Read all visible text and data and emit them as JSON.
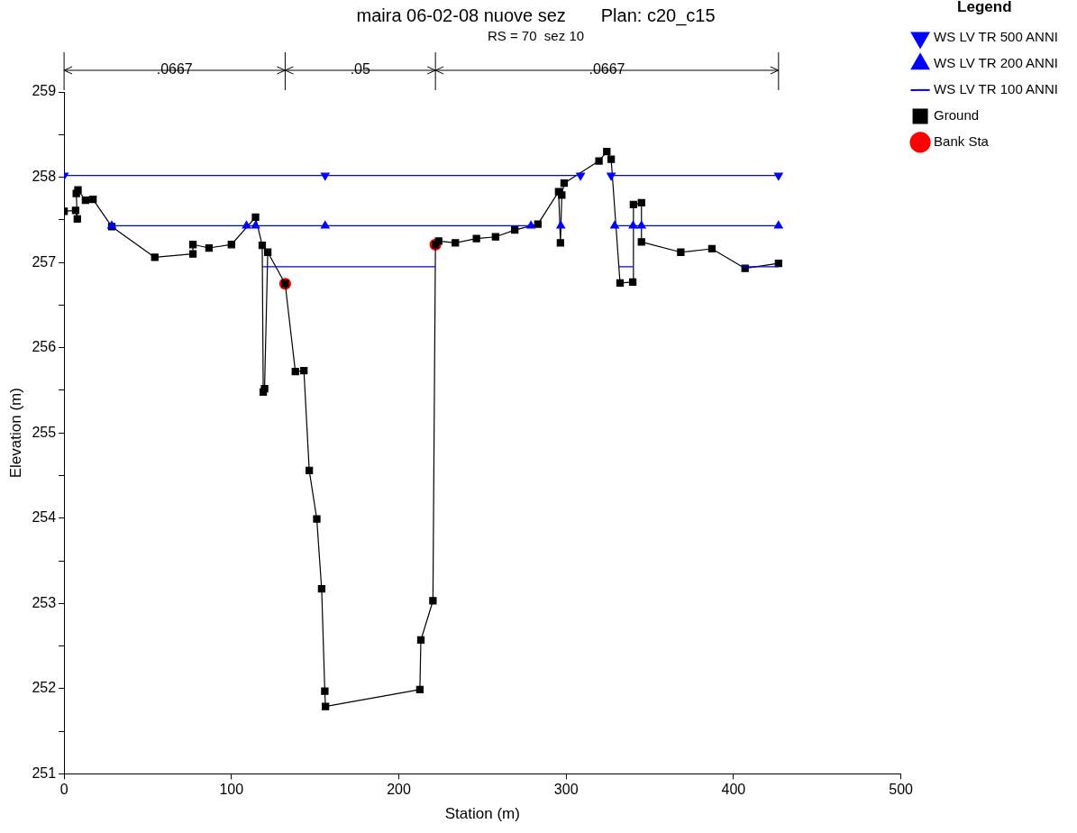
{
  "chart_data": {
    "type": "line",
    "title": "maira 06-02-08 nuove sez       Plan: c20_c15",
    "subtitle": "RS = 70  sez 10",
    "xlabel": "Station (m)",
    "ylabel": "Elevation (m)",
    "xlim": [
      0,
      500
    ],
    "xticks": [
      0,
      100,
      200,
      300,
      400,
      500
    ],
    "ylim": [
      251,
      259
    ],
    "yticks": [
      251,
      {
        "value": 251.5,
        "label": null
      },
      252,
      {
        "value": 252.5,
        "label": null
      },
      253,
      {
        "value": 253.5,
        "label": null
      },
      254,
      {
        "value": 254.5,
        "label": null
      },
      255,
      {
        "value": 255.5,
        "label": null
      },
      256,
      {
        "value": 256.5,
        "label": null
      },
      257,
      {
        "value": 257.5,
        "label": null
      },
      258,
      {
        "value": 258.5,
        "label": null
      },
      259
    ],
    "legend": "right",
    "legend_title": "Legend",
    "annotations": [
      ".0667",
      ".05",
      ".0667"
    ],
    "series": [
      {
        "name": "WS LV TR 500 ANNI",
        "type": "line",
        "color": "#0000ff",
        "marker": "triangle-down",
        "x": [
          0,
          156,
          308.6,
          318,
          326.9,
          426.9
        ],
        "values": [
          258.02,
          258.02,
          258.02,
          null,
          258.02,
          258.02
        ]
      },
      {
        "name": "WS LV TR 200 ANNI",
        "type": "line",
        "color": "#0000ff",
        "marker": "triangle",
        "x": [
          28.5,
          109,
          114.4,
          156,
          279,
          288,
          296.8,
          312,
          329,
          340,
          345,
          426.9
        ],
        "values": [
          257.43,
          257.43,
          257.43,
          257.43,
          257.43,
          null,
          257.43,
          null,
          257.43,
          257.43,
          257.43,
          257.43
        ]
      },
      {
        "name": "WS LV TR 100 ANNI",
        "type": "line",
        "color": "#0000ff",
        "marker": "none",
        "x": [
          118.4,
          221.9,
          280,
          331.5,
          339.8,
          380,
          405,
          426.9
        ],
        "values": [
          256.95,
          256.95,
          null,
          256.95,
          256.95,
          null,
          256.95,
          256.95
        ]
      },
      {
        "name": "Ground",
        "type": "line",
        "color": "#000000",
        "marker": "square",
        "x": [
          0,
          6.9,
          7.9,
          7.3,
          8.3,
          12.8,
          17.3,
          28.5,
          54.2,
          77,
          77,
          86.6,
          100,
          114.4,
          118.4,
          119,
          119.8,
          121.7,
          132.1,
          138.2,
          143.3,
          146.5,
          151,
          153.9,
          155.8,
          156.2,
          212.6,
          213.2,
          220.4,
          221.9,
          223.8,
          233.8,
          246.4,
          257.8,
          269.3,
          283.1,
          295.5,
          296.6,
          297.4,
          298.8,
          319.6,
          324.3,
          326.9,
          332.2,
          339.8,
          340.2,
          345,
          345,
          368.5,
          387.1,
          406.9,
          426.9
        ],
        "values": [
          257.6,
          257.61,
          257.51,
          257.81,
          257.85,
          257.73,
          257.74,
          257.42,
          257.06,
          257.1,
          257.21,
          257.17,
          257.21,
          257.53,
          257.2,
          255.48,
          255.52,
          257.12,
          256.75,
          255.72,
          255.73,
          254.56,
          253.99,
          253.17,
          251.97,
          251.79,
          251.99,
          252.57,
          253.03,
          257.21,
          257.25,
          257.23,
          257.28,
          257.3,
          257.38,
          257.45,
          257.83,
          257.23,
          257.79,
          257.93,
          258.19,
          258.3,
          258.21,
          256.76,
          256.77,
          257.68,
          257.7,
          257.24,
          257.12,
          257.16,
          256.93,
          256.99
        ]
      },
      {
        "name": "Bank Sta",
        "type": "scatter",
        "color": "#ff0000",
        "marker": "circle",
        "x": [
          132.1,
          221.9
        ],
        "values": [
          256.75,
          257.21
        ]
      }
    ]
  }
}
